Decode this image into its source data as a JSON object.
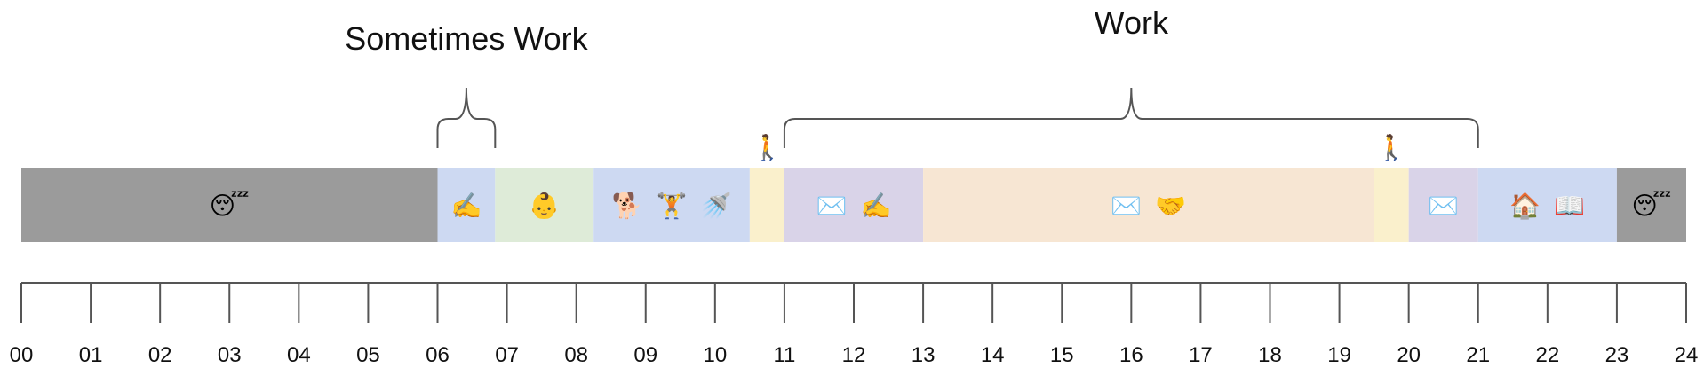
{
  "colors": {
    "sleep": "#9b9b9b",
    "personal_blue": "#cdd9f2",
    "baby_green": "#deebd8",
    "commute_yellow": "#faf0cc",
    "email_purple": "#d9d3e8",
    "work_peach": "#f7e6d3",
    "line": "#555555"
  },
  "timeline": {
    "start_hour": 0,
    "end_hour": 24,
    "hour_labels": [
      "00",
      "01",
      "02",
      "03",
      "04",
      "05",
      "06",
      "07",
      "08",
      "09",
      "10",
      "11",
      "12",
      "13",
      "14",
      "15",
      "16",
      "17",
      "18",
      "19",
      "20",
      "21",
      "22",
      "23",
      "24"
    ],
    "blocks": [
      {
        "start": 0,
        "end": 6,
        "color_key": "sleep",
        "icons": [
          "😴"
        ]
      },
      {
        "start": 6,
        "end": 6.83,
        "color_key": "personal_blue",
        "icons": [
          "✍️"
        ]
      },
      {
        "start": 6.83,
        "end": 8.25,
        "color_key": "baby_green",
        "icons": [
          "👶"
        ]
      },
      {
        "start": 8.25,
        "end": 10.5,
        "color_key": "personal_blue",
        "icons": [
          "🐕",
          "🏋️",
          "🚿"
        ]
      },
      {
        "start": 10.5,
        "end": 11,
        "color_key": "commute_yellow",
        "icons": []
      },
      {
        "start": 11,
        "end": 13,
        "color_key": "email_purple",
        "icons": [
          "✉️",
          "✍️"
        ]
      },
      {
        "start": 13,
        "end": 19.5,
        "color_key": "work_peach",
        "icons": [
          "✉️",
          "🤝"
        ]
      },
      {
        "start": 19.5,
        "end": 20,
        "color_key": "commute_yellow",
        "icons": []
      },
      {
        "start": 20,
        "end": 21,
        "color_key": "email_purple",
        "icons": [
          "✉️"
        ]
      },
      {
        "start": 21,
        "end": 23,
        "color_key": "personal_blue",
        "icons": [
          "🏠",
          "📖"
        ]
      },
      {
        "start": 23,
        "end": 24,
        "color_key": "sleep",
        "icons": [
          "😴"
        ]
      }
    ],
    "walkers": [
      {
        "hour": 10.75,
        "icon": "🚶"
      },
      {
        "hour": 19.75,
        "icon": "🚶"
      }
    ],
    "brackets": [
      {
        "label": "Sometimes Work",
        "start": 6,
        "end": 6.83
      },
      {
        "label": "Work",
        "start": 11,
        "end": 21
      }
    ]
  }
}
